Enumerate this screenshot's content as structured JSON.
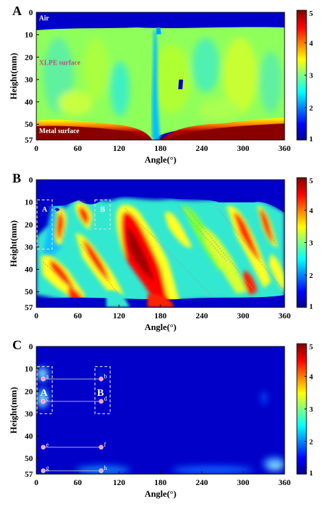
{
  "chart_data": [
    {
      "panel": "A",
      "type": "heatmap",
      "xlabel": "Angle(°)",
      "ylabel": "Height(mm)",
      "xlim": [
        0,
        360
      ],
      "ylim": [
        0,
        57
      ],
      "xticks": [
        "0",
        "60",
        "120",
        "180",
        "240",
        "300",
        "360"
      ],
      "yticks": [
        "0",
        "10",
        "20",
        "30",
        "40",
        "50",
        "57"
      ],
      "colorbar": {
        "min": 1,
        "max": 5,
        "ticks": [
          "1",
          "2",
          "3",
          "4",
          "5"
        ]
      },
      "annotations": [
        {
          "text": "Air",
          "x": 4,
          "y": 3.5,
          "color": "#ffffff"
        },
        {
          "text": "XLPE surface",
          "x": 4,
          "y": 23.5,
          "color": "#c0508a"
        },
        {
          "text": "Metal surface",
          "x": 4,
          "y": 54,
          "color": "#ffffff"
        }
      ]
    },
    {
      "panel": "B",
      "type": "heatmap",
      "xlabel": "Angle(°)",
      "ylabel": "Height(mm)",
      "xlim": [
        0,
        360
      ],
      "ylim": [
        0,
        57
      ],
      "xticks": [
        "0",
        "60",
        "120",
        "180",
        "240",
        "300",
        "360"
      ],
      "yticks": [
        "0",
        "10",
        "20",
        "30",
        "40",
        "50",
        "57"
      ],
      "colorbar": {
        "min": 1,
        "max": 5,
        "ticks": [
          "1",
          "2",
          "3",
          "4",
          "5"
        ]
      },
      "regions": [
        {
          "label": "A",
          "x": [
            1,
            23
          ],
          "y": [
            9,
            31
          ]
        },
        {
          "label": "B",
          "x": [
            85,
            107
          ],
          "y": [
            9,
            22
          ]
        }
      ]
    },
    {
      "panel": "C",
      "type": "heatmap",
      "xlabel": "Angle(°)",
      "ylabel": "Height(mm)",
      "xlim": [
        0,
        360
      ],
      "ylim": [
        0,
        57
      ],
      "xticks": [
        "0",
        "60",
        "120",
        "180",
        "240",
        "300",
        "360"
      ],
      "yticks": [
        "0",
        "10",
        "20",
        "30",
        "40",
        "50",
        "57"
      ],
      "colorbar": {
        "min": 1,
        "max": 5,
        "ticks": [
          "1",
          "2",
          "3",
          "4",
          "5"
        ]
      },
      "regions": [
        {
          "label": "A",
          "x": [
            1,
            23
          ],
          "y": [
            9,
            30
          ]
        },
        {
          "label": "B",
          "x": [
            85,
            107
          ],
          "y": [
            9,
            30
          ]
        }
      ],
      "points": [
        {
          "label": "a",
          "x": 10,
          "y": 14.5
        },
        {
          "label": "b",
          "x": 94,
          "y": 14.5
        },
        {
          "label": "c",
          "x": 10,
          "y": 24.5
        },
        {
          "label": "d",
          "x": 94,
          "y": 24.5
        },
        {
          "label": "e",
          "x": 10,
          "y": 45
        },
        {
          "label": "f",
          "x": 94,
          "y": 45
        },
        {
          "label": "g",
          "x": 10,
          "y": 55.5
        },
        {
          "label": "h",
          "x": 94,
          "y": 55.5
        }
      ],
      "segments": [
        [
          "a",
          "b"
        ],
        [
          "c",
          "d"
        ],
        [
          "e",
          "f"
        ],
        [
          "g",
          "h"
        ]
      ]
    }
  ]
}
